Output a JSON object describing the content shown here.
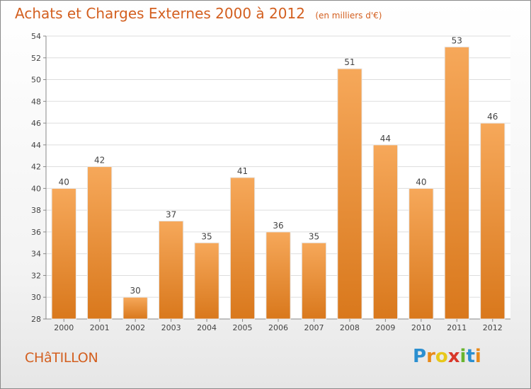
{
  "header": {
    "title": "Achats et Charges Externes 2000 à 2012",
    "subtitle": "(en milliers d'€)"
  },
  "footer": {
    "town": "CHâTILLON",
    "logo_text": "Proxiti"
  },
  "colors": {
    "accent": "#d35f1f",
    "bar_light": "#f6a85a",
    "bar_dark": "#d9781c"
  },
  "chart_data": {
    "type": "bar",
    "categories": [
      "2000",
      "2001",
      "2002",
      "2003",
      "2004",
      "2005",
      "2006",
      "2007",
      "2008",
      "2009",
      "2010",
      "2011",
      "2012"
    ],
    "values": [
      40,
      42,
      30,
      37,
      35,
      41,
      36,
      35,
      51,
      44,
      40,
      53,
      46
    ],
    "ylim": [
      28,
      54
    ],
    "yticks": [
      28,
      30,
      32,
      34,
      36,
      38,
      40,
      42,
      44,
      46,
      48,
      50,
      52,
      54
    ],
    "grid": true
  }
}
